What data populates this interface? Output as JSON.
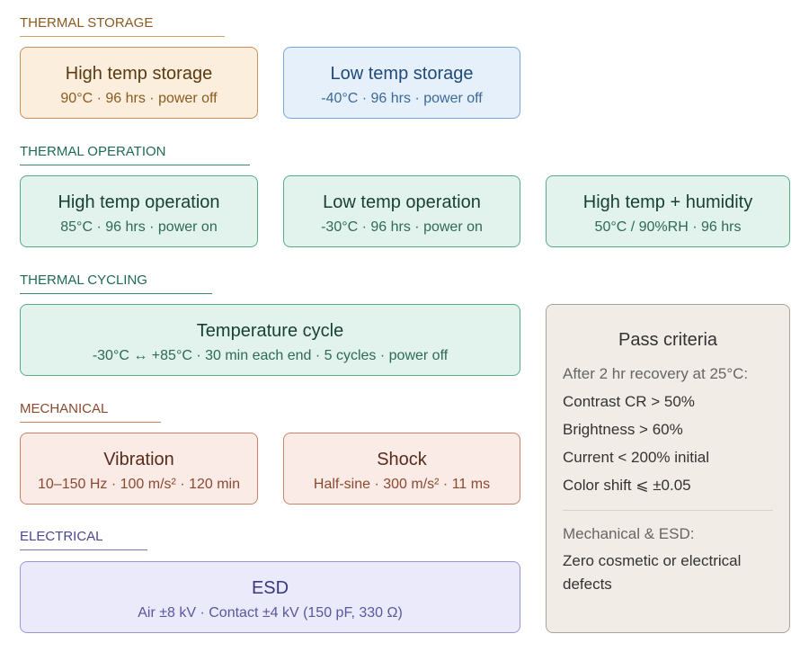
{
  "sections": [
    {
      "title": "THERMAL STORAGE",
      "cards": [
        {
          "title": "High temp storage",
          "detail": "90°C · 96 hrs · power off"
        },
        {
          "title": "Low temp storage",
          "detail": "-40°C · 96 hrs · power off"
        }
      ]
    },
    {
      "title": "THERMAL OPERATION",
      "cards": [
        {
          "title": "High temp operation",
          "detail": "85°C · 96 hrs · power on"
        },
        {
          "title": "Low temp operation",
          "detail": "-30°C · 96 hrs · power on"
        },
        {
          "title": "High temp + humidity",
          "detail": "50°C / 90%RH · 96 hrs"
        }
      ]
    },
    {
      "title": "THERMAL CYCLING",
      "cards": [
        {
          "title": "Temperature cycle",
          "detail": "-30°C ↔ +85°C · 30 min each end · 5 cycles · power off"
        }
      ]
    },
    {
      "title": "MECHANICAL",
      "cards": [
        {
          "title": "Vibration",
          "detail": "10–150 Hz · 100 m/s² · 120 min"
        },
        {
          "title": "Shock",
          "detail": "Half-sine · 300 m/s² · 11 ms"
        }
      ]
    },
    {
      "title": "ELECTRICAL",
      "cards": [
        {
          "title": "ESD",
          "detail": "Air ±8 kV · Contact ±4 kV (150 pF, 330 Ω)"
        }
      ]
    }
  ],
  "pass_criteria": {
    "title": "Pass criteria",
    "intro": "After 2 hr recovery at 25°C:",
    "items": [
      "Contrast CR > 50%",
      "Brightness > 60%",
      "Current < 200% initial",
      "Color shift ⩽ ±0.05"
    ],
    "note_title": "Mechanical & ESD:",
    "note": "Zero cosmetic or electrical defects"
  }
}
